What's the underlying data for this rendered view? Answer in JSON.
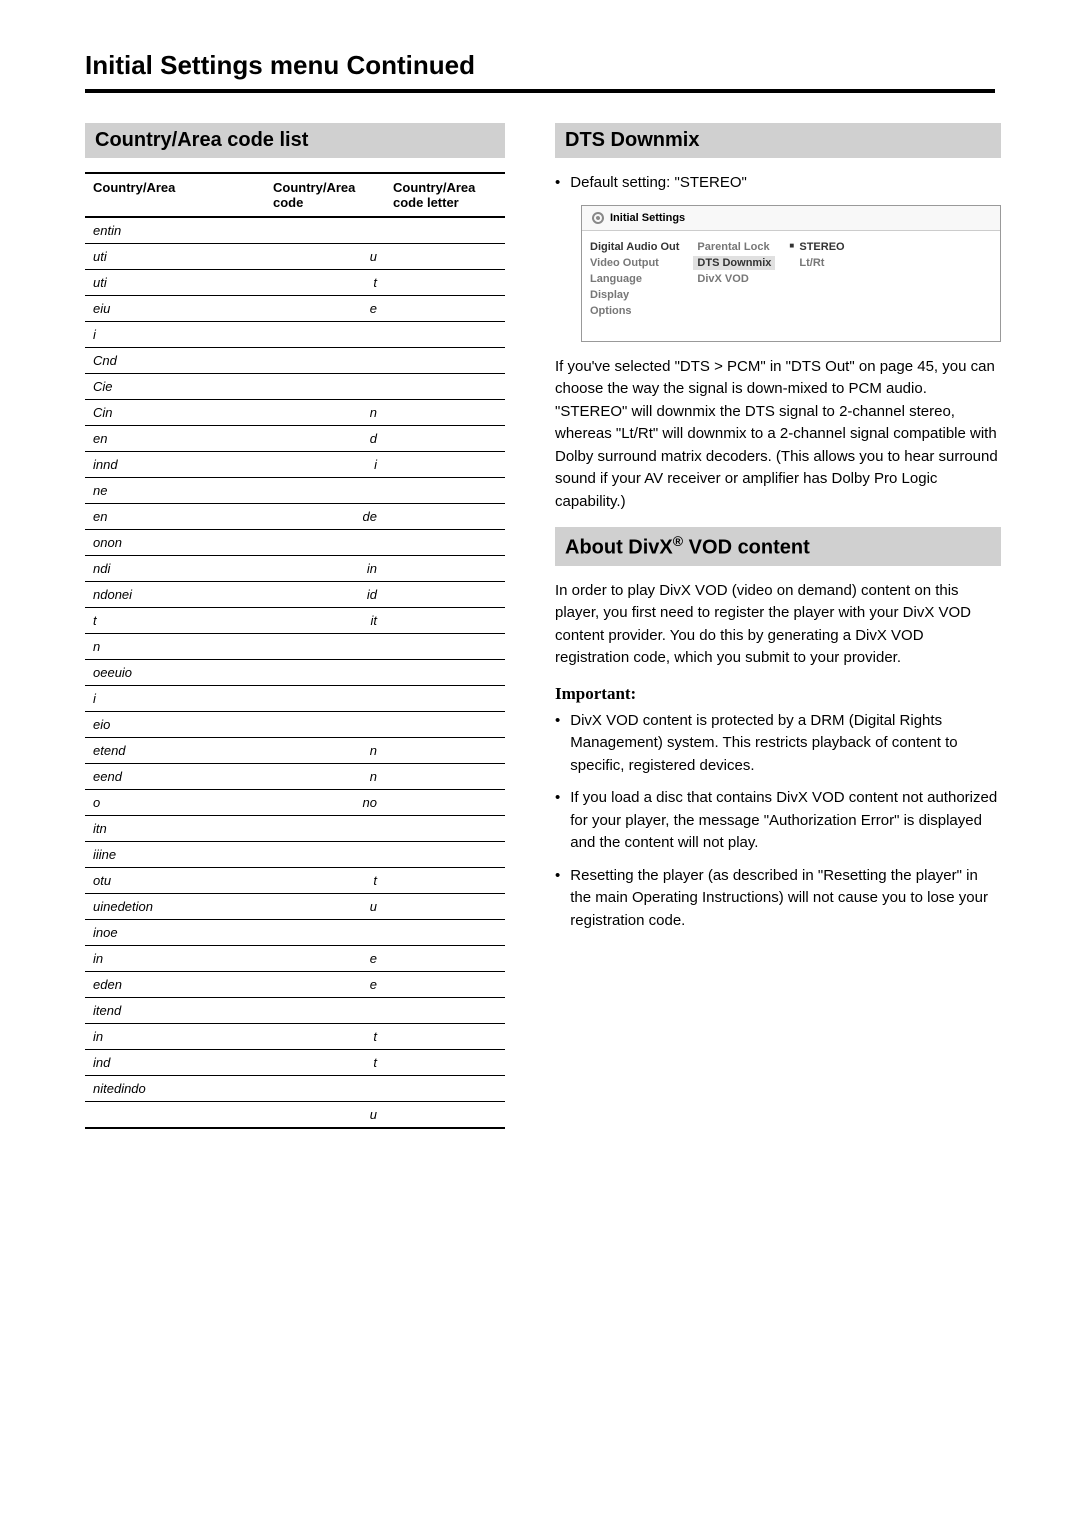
{
  "page_title_bold": "Initial Settings menu",
  "page_title_light": " Continued",
  "left": {
    "header": "Country/Area code list",
    "table": {
      "headers": [
        "Country/Area",
        "Country/Area code",
        "Country/Area code letter"
      ],
      "rows": [
        [
          "entin",
          "",
          ""
        ],
        [
          "uti",
          "u",
          ""
        ],
        [
          "uti",
          "t",
          ""
        ],
        [
          "eiu",
          "e",
          ""
        ],
        [
          "i",
          "",
          ""
        ],
        [
          "Cnd",
          "",
          ""
        ],
        [
          "Cie",
          "",
          ""
        ],
        [
          "Cin",
          "n",
          ""
        ],
        [
          "en",
          "d",
          ""
        ],
        [
          "innd",
          "i",
          ""
        ],
        [
          "ne",
          "",
          ""
        ],
        [
          "en",
          "de",
          ""
        ],
        [
          "onon",
          "",
          ""
        ],
        [
          "ndi",
          "in",
          ""
        ],
        [
          "ndonei",
          "id",
          ""
        ],
        [
          "t",
          "it",
          ""
        ],
        [
          "n",
          "",
          ""
        ],
        [
          "oeeuio",
          "",
          ""
        ],
        [
          "i",
          "",
          ""
        ],
        [
          "eio",
          "",
          ""
        ],
        [
          "etend",
          "n",
          ""
        ],
        [
          "eend",
          "n",
          ""
        ],
        [
          "o",
          "no",
          ""
        ],
        [
          "itn",
          "",
          ""
        ],
        [
          "iiine",
          "",
          ""
        ],
        [
          "otu",
          "t",
          ""
        ],
        [
          "uinedetion",
          "u",
          ""
        ],
        [
          "inoe",
          "",
          ""
        ],
        [
          "in",
          "e",
          ""
        ],
        [
          "eden",
          "e",
          ""
        ],
        [
          "itend",
          "",
          ""
        ],
        [
          "in",
          "t",
          ""
        ],
        [
          "ind",
          "t",
          ""
        ],
        [
          "nitedindo",
          "",
          ""
        ],
        [
          "",
          "u",
          ""
        ]
      ]
    }
  },
  "right": {
    "dts": {
      "header": "DTS Downmix",
      "default_label": "Default setting: \"STEREO\"",
      "ui": {
        "title": "Initial Settings",
        "col1": [
          "Digital Audio Out",
          "Video Output",
          "Language",
          "Display",
          "Options"
        ],
        "col2": [
          "Parental Lock",
          "DTS Downmix",
          "DivX VOD"
        ],
        "col3": [
          "STEREO",
          "Lt/Rt"
        ]
      },
      "body": "If you've selected \"DTS > PCM\" in \"DTS Out\" on page 45, you can choose the way the signal is down-mixed to PCM audio. \"STEREO\" will downmix the DTS signal to 2-channel stereo, whereas \"Lt/Rt\" will downmix to a 2-channel signal compatible with Dolby surround matrix decoders. (This allows you to hear surround sound if your AV receiver or amplifier has Dolby Pro Logic capability.)"
    },
    "divx": {
      "header_pre": "About DivX",
      "header_sup": "®",
      "header_post": " VOD content",
      "intro": "In order to play DivX VOD (video on demand) content on this player, you first need to register the player with your DivX VOD content provider. You do this by generating a DivX VOD registration code, which you submit to your provider.",
      "important_label": "Important:",
      "bullets": [
        "DivX VOD content is protected by a DRM (Digital Rights Management) system. This restricts playback of content to specific, registered devices.",
        "If you load a disc that contains DivX VOD content not authorized for your player, the message \"Authorization Error\" is displayed and the content will not play.",
        "Resetting the player (as described in \"Resetting the player\" in the main Operating Instructions) will not cause you to lose your registration code."
      ]
    }
  }
}
